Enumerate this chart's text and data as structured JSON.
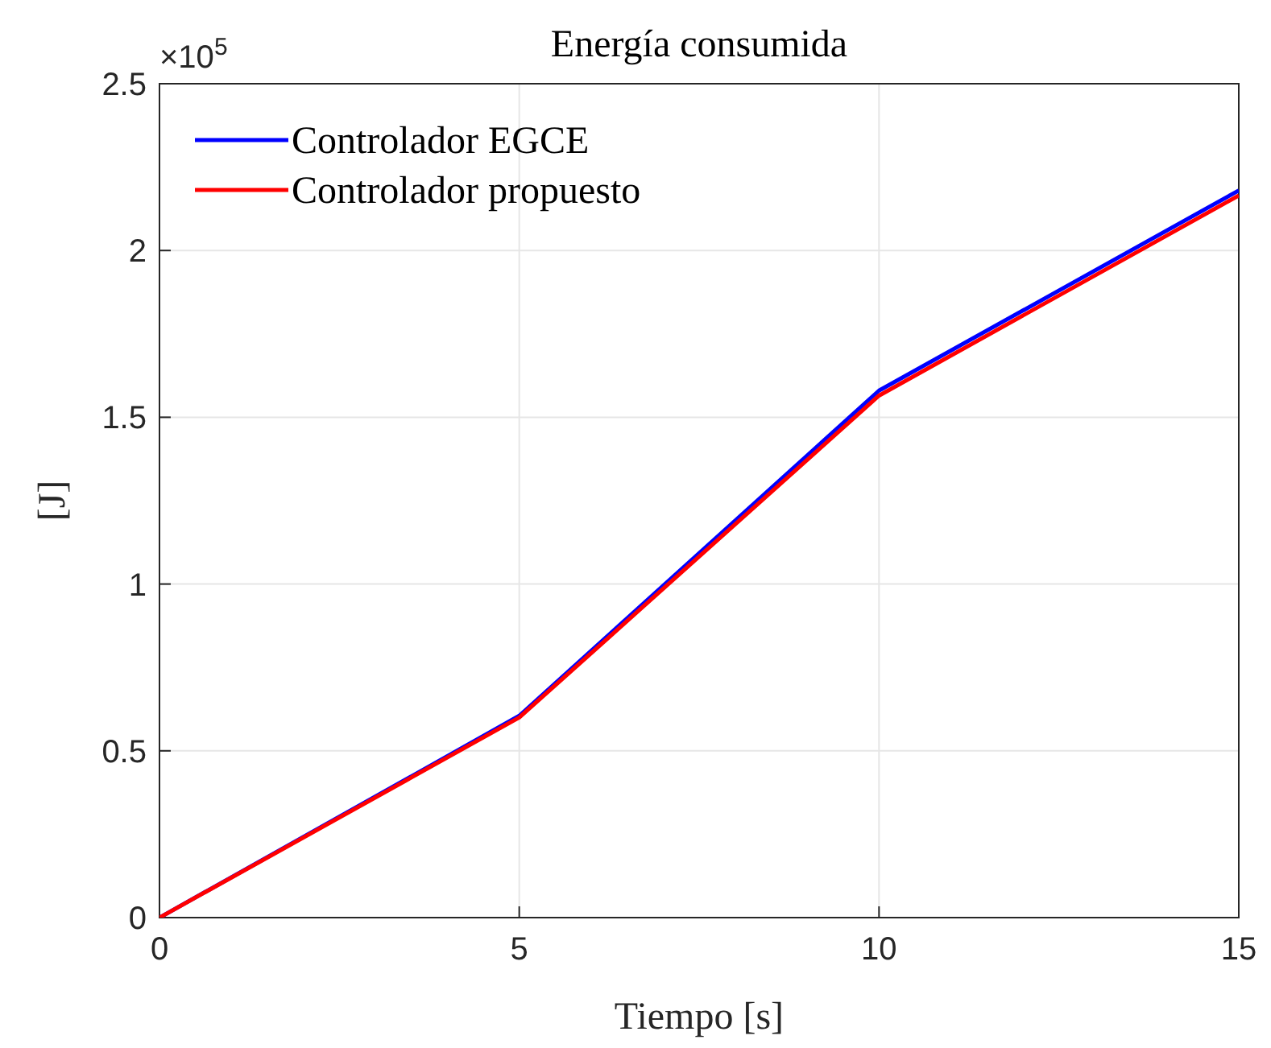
{
  "chart_data": {
    "type": "line",
    "title": "Energía consumida",
    "xlabel": "Tiempo [s]",
    "ylabel": "[J]",
    "x": [
      0,
      5,
      10,
      15
    ],
    "series": [
      {
        "name": "Controlador EGCE",
        "color": "#0000ff",
        "values": [
          0,
          0.605,
          1.58,
          2.18
        ]
      },
      {
        "name": "Controlador propuesto",
        "color": "#ff0000",
        "values": [
          0,
          0.6,
          1.565,
          2.165
        ]
      }
    ],
    "xlim": [
      0,
      15
    ],
    "xticks": [
      0,
      5,
      10,
      15
    ],
    "ylim": [
      0,
      2.5
    ],
    "yticks": [
      0,
      0.5,
      1,
      1.5,
      2,
      2.5
    ],
    "annotations": [
      "×10$^{5}$"
    ],
    "grid": true,
    "legend": "top left",
    "line_style": "solid",
    "marker": "none"
  }
}
